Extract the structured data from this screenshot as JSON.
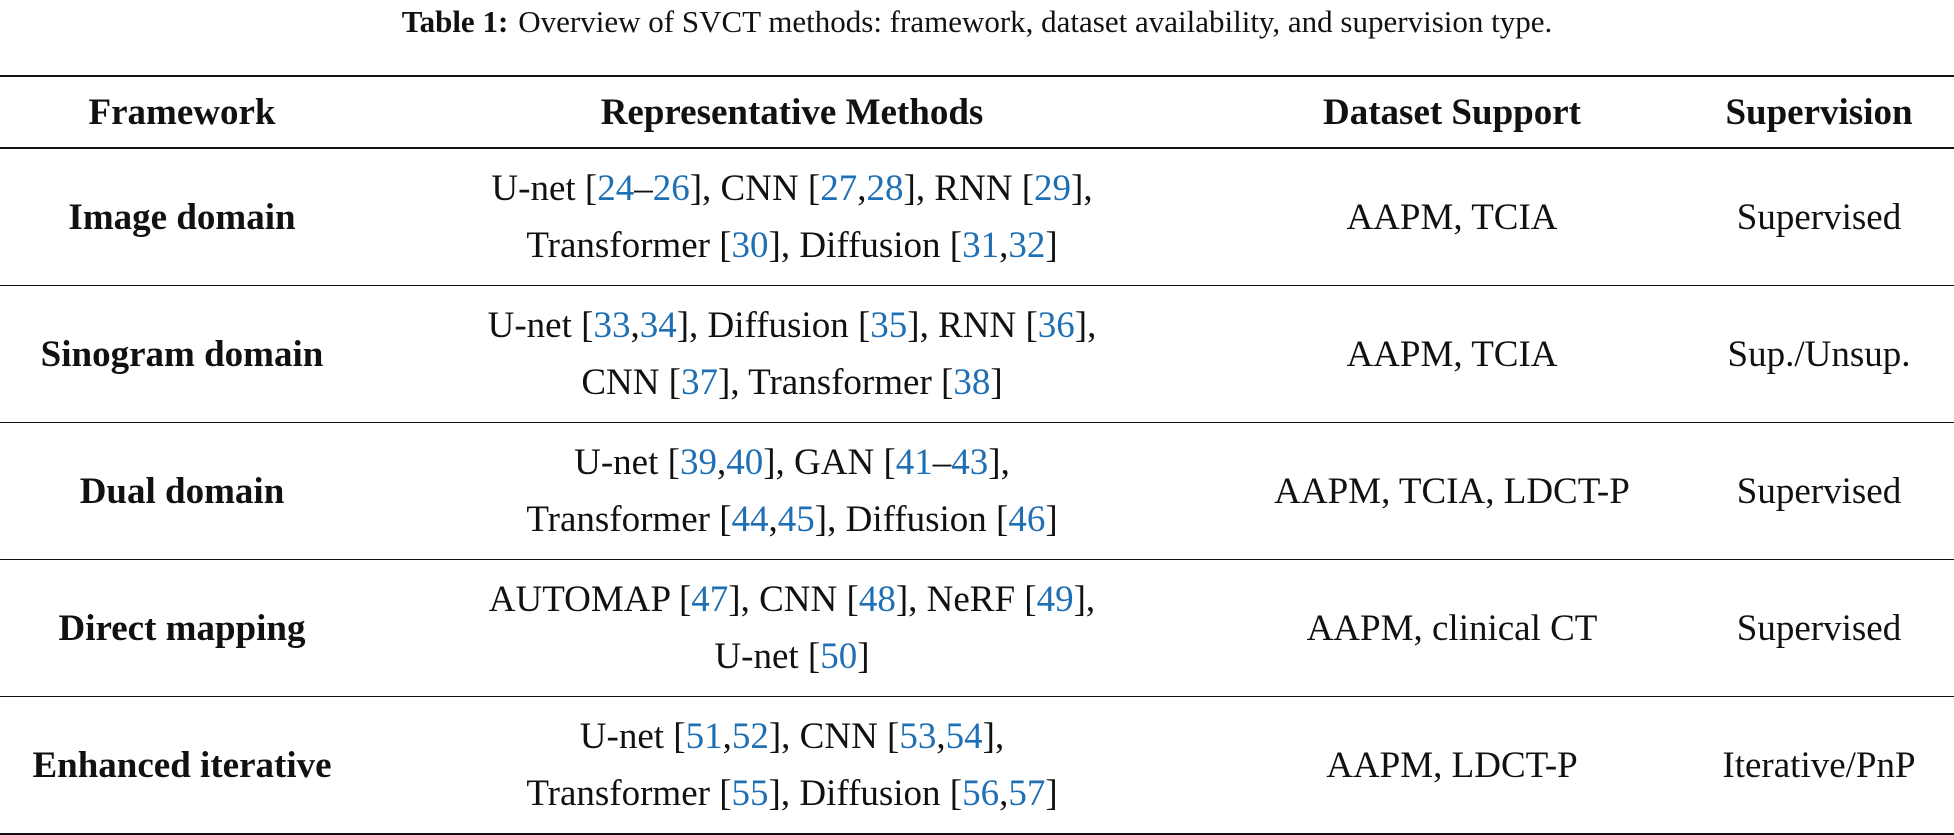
{
  "caption": {
    "label": "Table 1:",
    "text": "Overview of SVCT methods: framework, dataset availability, and supervision type."
  },
  "table": {
    "header": [
      "Framework",
      "Representative Methods",
      "Dataset Support",
      "Supervision"
    ],
    "rows": [
      {
        "framework": "Image domain",
        "methods": [
          [
            "U-net [",
            {
              "ref": "24"
            },
            "–",
            {
              "ref": "26"
            },
            "], CNN [",
            {
              "ref": "27"
            },
            ",",
            {
              "ref": "28"
            },
            "], RNN [",
            {
              "ref": "29"
            },
            "],"
          ],
          [
            "Transformer [",
            {
              "ref": "30"
            },
            "], Diffusion [",
            {
              "ref": "31"
            },
            ",",
            {
              "ref": "32"
            },
            "]"
          ]
        ],
        "dataset": "AAPM, TCIA",
        "supervision": "Supervised"
      },
      {
        "framework": "Sinogram domain",
        "methods": [
          [
            "U-net [",
            {
              "ref": "33"
            },
            ",",
            {
              "ref": "34"
            },
            "], Diffusion [",
            {
              "ref": "35"
            },
            "], RNN [",
            {
              "ref": "36"
            },
            "],"
          ],
          [
            "CNN [",
            {
              "ref": "37"
            },
            "], Transformer [",
            {
              "ref": "38"
            },
            "]"
          ]
        ],
        "dataset": "AAPM, TCIA",
        "supervision": "Sup./Unsup."
      },
      {
        "framework": "Dual domain",
        "methods": [
          [
            "U-net [",
            {
              "ref": "39"
            },
            ",",
            {
              "ref": "40"
            },
            "], GAN [",
            {
              "ref": "41"
            },
            "–",
            {
              "ref": "43"
            },
            "],"
          ],
          [
            "Transformer [",
            {
              "ref": "44"
            },
            ",",
            {
              "ref": "45"
            },
            "], Diffusion [",
            {
              "ref": "46"
            },
            "]"
          ]
        ],
        "dataset": "AAPM, TCIA, LDCT-P",
        "supervision": "Supervised"
      },
      {
        "framework": "Direct mapping",
        "methods": [
          [
            "AUTOMAP [",
            {
              "ref": "47"
            },
            "], CNN [",
            {
              "ref": "48"
            },
            "], NeRF [",
            {
              "ref": "49"
            },
            "],"
          ],
          [
            "U-net [",
            {
              "ref": "50"
            },
            "]"
          ]
        ],
        "dataset": "AAPM, clinical CT",
        "supervision": "Supervised"
      },
      {
        "framework": "Enhanced iterative",
        "methods": [
          [
            "U-net [",
            {
              "ref": "51"
            },
            ",",
            {
              "ref": "52"
            },
            "], CNN [",
            {
              "ref": "53"
            },
            ",",
            {
              "ref": "54"
            },
            "],"
          ],
          [
            "Transformer [",
            {
              "ref": "55"
            },
            "], Diffusion [",
            {
              "ref": "56"
            },
            ",",
            {
              "ref": "57"
            },
            "]"
          ]
        ],
        "dataset": "AAPM, LDCT-P",
        "supervision": "Iterative/PnP"
      }
    ]
  }
}
